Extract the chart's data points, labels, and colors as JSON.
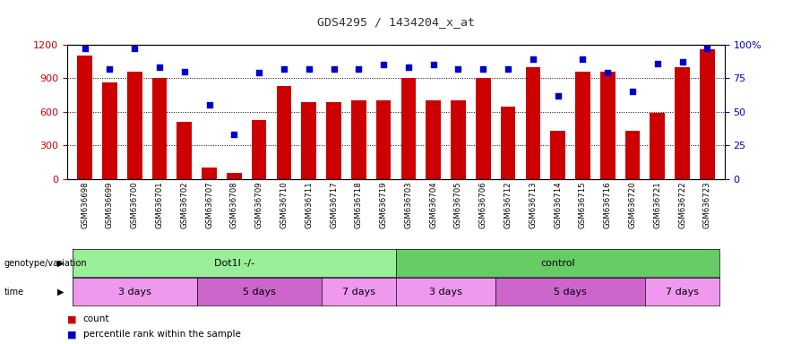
{
  "title": "GDS4295 / 1434204_x_at",
  "samples": [
    "GSM636698",
    "GSM636699",
    "GSM636700",
    "GSM636701",
    "GSM636702",
    "GSM636707",
    "GSM636708",
    "GSM636709",
    "GSM636710",
    "GSM636711",
    "GSM636717",
    "GSM636718",
    "GSM636719",
    "GSM636703",
    "GSM636704",
    "GSM636705",
    "GSM636706",
    "GSM636712",
    "GSM636713",
    "GSM636714",
    "GSM636715",
    "GSM636716",
    "GSM636720",
    "GSM636721",
    "GSM636722",
    "GSM636723"
  ],
  "counts": [
    1100,
    860,
    960,
    900,
    510,
    100,
    50,
    530,
    830,
    690,
    690,
    700,
    700,
    900,
    700,
    700,
    900,
    650,
    1000,
    430,
    960,
    960,
    430,
    590,
    1000,
    1160
  ],
  "percentiles": [
    97,
    82,
    97,
    83,
    80,
    55,
    33,
    79,
    82,
    82,
    82,
    82,
    85,
    83,
    85,
    82,
    82,
    82,
    89,
    62,
    89,
    79,
    65,
    86,
    87,
    97
  ],
  "bar_color": "#cc0000",
  "dot_color": "#0000cc",
  "ylim_left": [
    0,
    1200
  ],
  "ylim_right": [
    0,
    100
  ],
  "yticks_left": [
    0,
    300,
    600,
    900,
    1200
  ],
  "yticks_right": [
    0,
    25,
    50,
    75,
    100
  ],
  "background_color": "#ffffff",
  "plot_bg_color": "#ffffff",
  "title_color": "#333333",
  "tick_label_color": "#cc0000",
  "right_tick_color": "#0000cc",
  "groups": [
    {
      "label": "Dot1l -/-",
      "start": 0,
      "end": 13,
      "color": "#99ee99"
    },
    {
      "label": "control",
      "start": 13,
      "end": 26,
      "color": "#66cc66"
    }
  ],
  "time_groups": [
    {
      "label": "3 days",
      "start": 0,
      "end": 5,
      "color": "#ee99ee"
    },
    {
      "label": "5 days",
      "start": 5,
      "end": 10,
      "color": "#cc66cc"
    },
    {
      "label": "7 days",
      "start": 10,
      "end": 13,
      "color": "#ee99ee"
    },
    {
      "label": "3 days",
      "start": 13,
      "end": 17,
      "color": "#ee99ee"
    },
    {
      "label": "5 days",
      "start": 17,
      "end": 23,
      "color": "#cc66cc"
    },
    {
      "label": "7 days",
      "start": 23,
      "end": 26,
      "color": "#ee99ee"
    }
  ],
  "legend_count_label": "count",
  "legend_pct_label": "percentile rank within the sample",
  "row_label_genotype": "genotype/variation",
  "row_label_time": "time"
}
